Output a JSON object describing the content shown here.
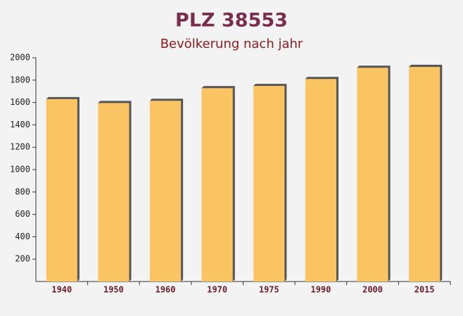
{
  "chart_data": {
    "type": "bar",
    "title": "PLZ 38553",
    "subtitle": "Bevölkerung nach jahr",
    "categories": [
      "1940",
      "1950",
      "1960",
      "1970",
      "1975",
      "1990",
      "2000",
      "2015"
    ],
    "values": [
      1630,
      1595,
      1615,
      1728,
      1748,
      1810,
      1910,
      1918
    ],
    "color": "#fbc463",
    "ylim": [
      0,
      2000
    ],
    "yticks": [
      200,
      400,
      600,
      800,
      1000,
      1200,
      1400,
      1600,
      1800,
      2000
    ]
  }
}
